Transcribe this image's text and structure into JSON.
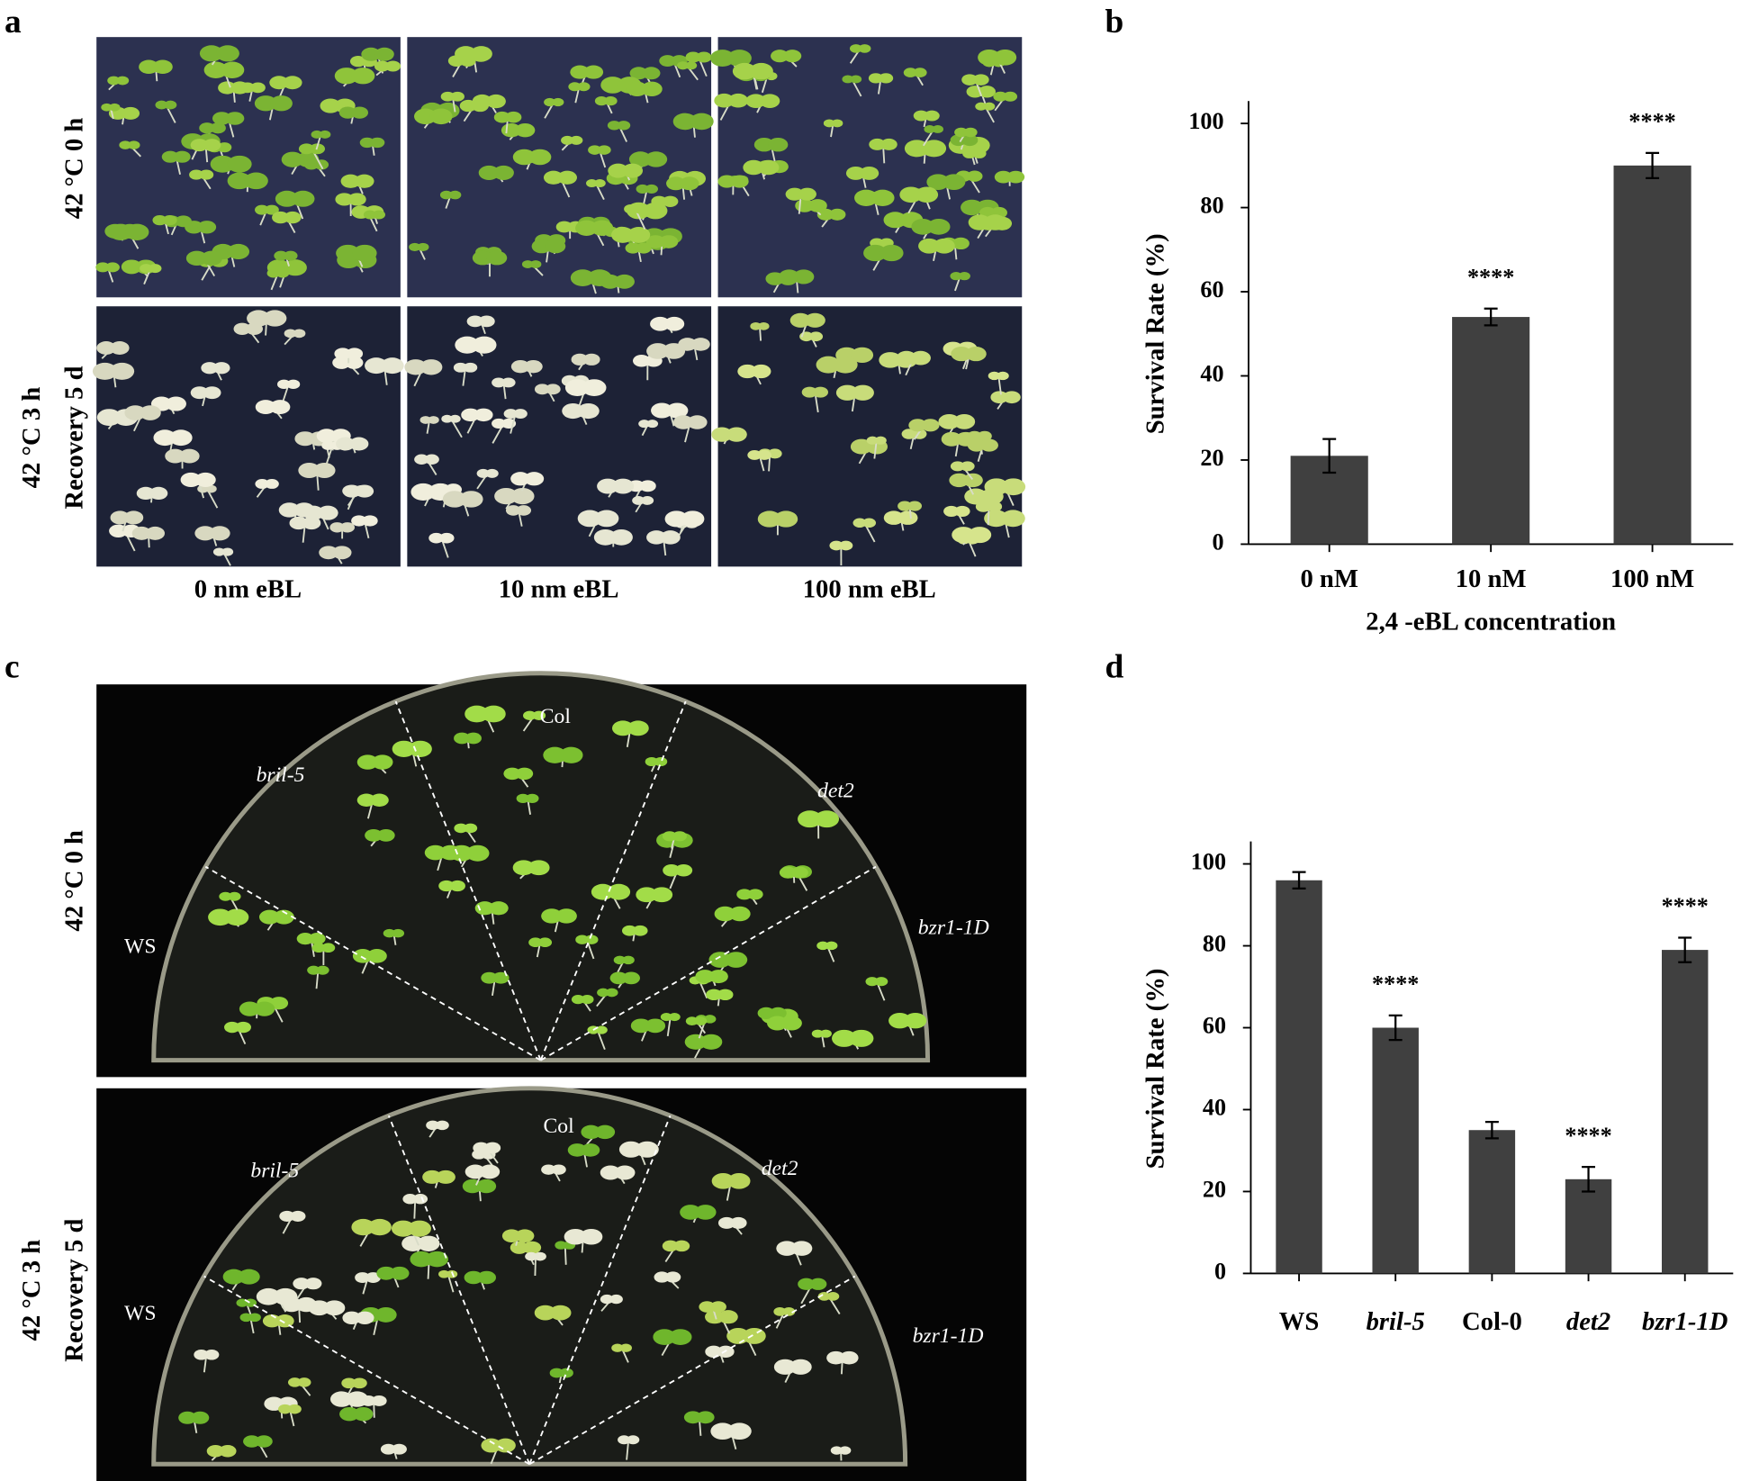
{
  "panels": {
    "a": {
      "label": "a",
      "row_labels": [
        [
          "42 °C 0 h"
        ],
        [
          "42 °C 3 h",
          "Recovery 5 d"
        ]
      ],
      "column_labels": [
        "0 nm eBL",
        "10 nm eBL",
        "100 nm eBL"
      ]
    },
    "c": {
      "label": "c",
      "row_labels": [
        [
          "42 °C 0 h"
        ],
        [
          "42 °C 3 h",
          "Recovery 5 d"
        ]
      ],
      "plate_labels": [
        [
          "Col",
          "bril-5",
          "det2",
          "WS",
          "bzr1-1D"
        ],
        [
          "Col",
          "bril-5",
          "det2",
          "WS",
          "bzr1-1D"
        ]
      ]
    }
  },
  "chart_data": [
    {
      "type": "bar",
      "panel_label": "b",
      "x_label": "2,4 -eBL concentration",
      "y_label": "Survival Rate (%)",
      "categories": [
        "0 nM",
        "10 nM",
        "100 nM"
      ],
      "category_italic": [
        false,
        false,
        false
      ],
      "values": [
        21,
        54,
        90
      ],
      "errors": [
        4,
        2,
        3
      ],
      "annotations": [
        null,
        "****",
        "****"
      ],
      "color": "#404040",
      "ylim": [
        0,
        100
      ],
      "yticks": [
        0,
        20,
        40,
        60,
        80,
        100
      ]
    },
    {
      "type": "bar",
      "panel_label": "d",
      "y_label": "Survival Rate (%)",
      "categories": [
        "WS",
        "bril-5",
        "Col-0",
        "det2",
        "bzr1-1D"
      ],
      "category_italic": [
        false,
        true,
        false,
        true,
        true
      ],
      "values": [
        96,
        60,
        35,
        23,
        79
      ],
      "errors": [
        2,
        3,
        2,
        3,
        3
      ],
      "annotations": [
        null,
        "****",
        null,
        "****",
        "****"
      ],
      "color": "#404040",
      "ylim": [
        0,
        100
      ],
      "yticks": [
        0,
        20,
        40,
        60,
        80,
        100
      ]
    }
  ]
}
